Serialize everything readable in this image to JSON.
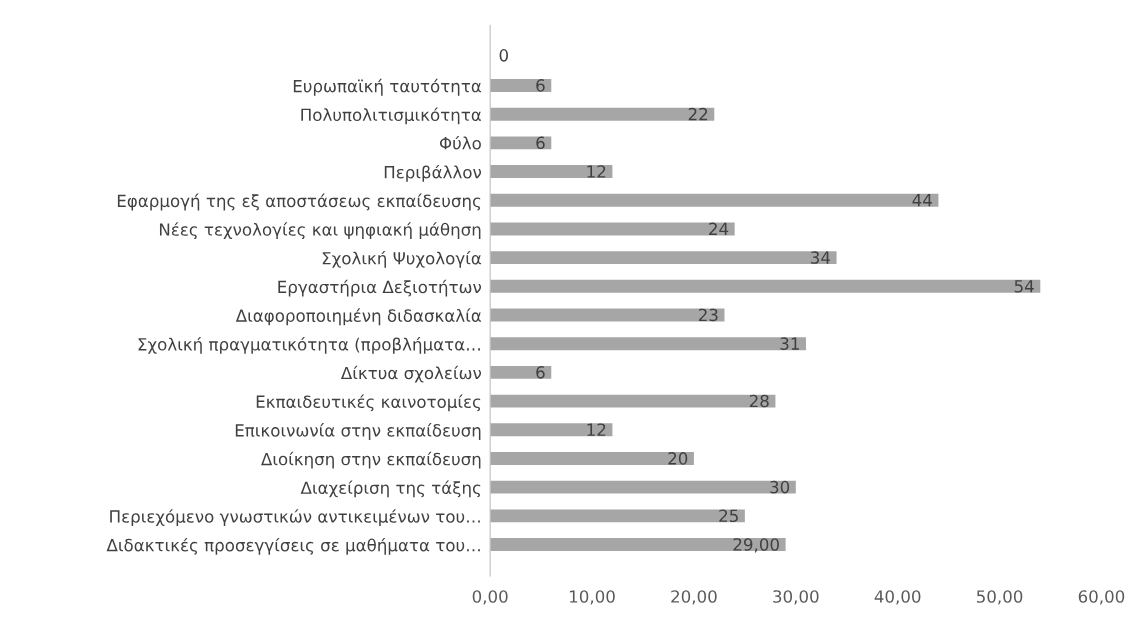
{
  "chart_data": {
    "type": "bar",
    "orientation": "horizontal",
    "categories": [
      null,
      "Ευρωπαϊκή ταυτότητα",
      "Πολυπολιτισμικότητα",
      "Φύλο",
      "Περιβάλλον",
      "Εφαρμογή της εξ αποστάσεως εκπαίδευσης",
      "Νέες τεχνολογίες και ψηφιακή μάθηση",
      "Σχολική Ψυχολογία",
      "Εργαστήρια Δεξιοτήτων",
      "Διαφοροποιημένη διδασκαλία",
      "Σχολική πραγματικότητα (προβλήματα…",
      "Δίκτυα σχολείων",
      "Εκπαιδευτικές καινοτομίες",
      "Επικοινωνία στην εκπαίδευση",
      "Διοίκηση στην εκπαίδευση",
      "Διαχείριση της τάξης",
      "Περιεχόμενο γνωστικών αντικειμένων του…",
      "Διδακτικές προσεγγίσεις σε μαθήματα του…"
    ],
    "values": [
      0,
      6,
      22,
      6,
      12,
      44,
      24,
      34,
      54,
      23,
      31,
      6,
      28,
      12,
      20,
      30,
      25,
      29
    ],
    "value_labels": [
      "0",
      "6",
      "22",
      "6",
      "12",
      "44",
      "24",
      "34",
      "54",
      "23",
      "31",
      "6",
      "28",
      "12",
      "20",
      "30",
      "25",
      "29,00"
    ],
    "color": "#a6a6a6",
    "xlim": [
      0,
      60
    ],
    "xticks": [
      {
        "value": 0,
        "label": "0,00"
      },
      {
        "value": 10,
        "label": "10,00"
      },
      {
        "value": 20,
        "label": "20,00"
      },
      {
        "value": 30,
        "label": "30,00"
      },
      {
        "value": 40,
        "label": "40,00"
      },
      {
        "value": 50,
        "label": "50,00"
      },
      {
        "value": 60,
        "label": "60,00"
      }
    ],
    "grid": false,
    "legend": false
  }
}
